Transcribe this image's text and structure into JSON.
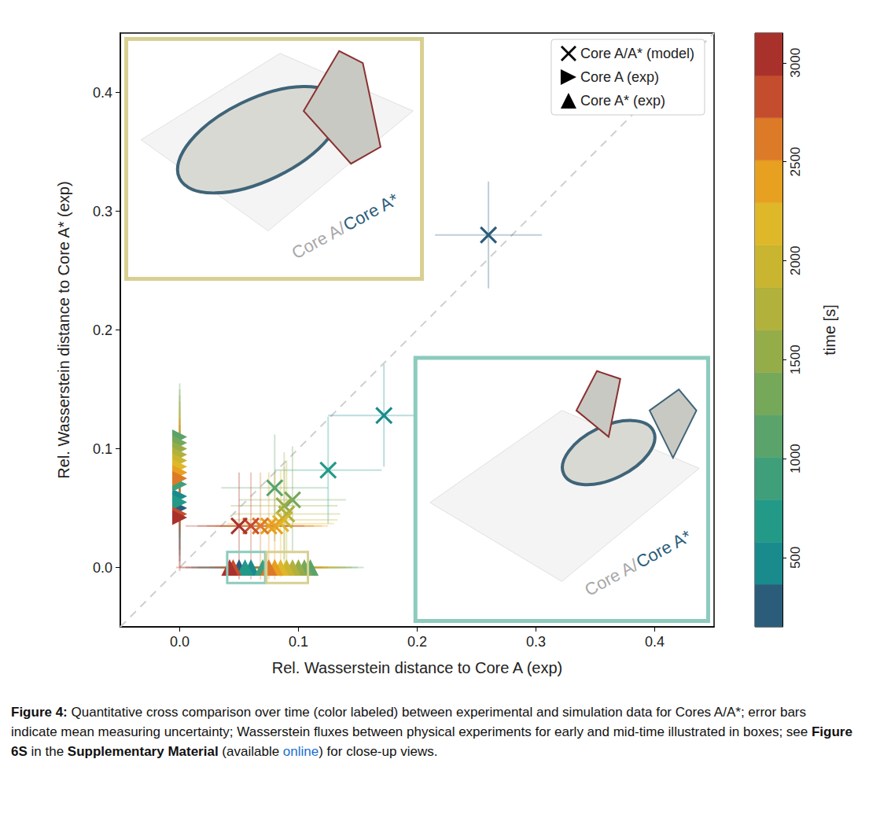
{
  "chart_data": {
    "type": "scatter",
    "xlabel": "Rel. Wasserstein distance to Core A (exp)",
    "ylabel": "Rel. Wasserstein distance to Core A* (exp)",
    "xlim": [
      -0.05,
      0.45
    ],
    "ylim": [
      -0.05,
      0.45
    ],
    "xticks": [
      {
        "value": 0,
        "label": "0.0"
      },
      {
        "value": 0.1,
        "label": "0.1"
      },
      {
        "value": 0.2,
        "label": "0.2"
      },
      {
        "value": 0.3,
        "label": "0.3"
      },
      {
        "value": 0.4,
        "label": "0.4"
      }
    ],
    "yticks": [
      {
        "value": 0,
        "label": "0.0"
      },
      {
        "value": 0.1,
        "label": "0.1"
      },
      {
        "value": 0.2,
        "label": "0.2"
      },
      {
        "value": 0.3,
        "label": "0.3"
      },
      {
        "value": 0.4,
        "label": "0.4"
      }
    ],
    "grid": false,
    "legend": "upper right",
    "series": [
      {
        "name": "Core A/A* (model)",
        "color": "#000000",
        "marker": "x",
        "x": [
          0.26,
          0.172,
          0.125,
          0.08,
          0.095,
          0.088,
          0.09,
          0.088,
          0.085,
          0.08,
          0.075,
          0.068,
          0.06,
          0.05
        ],
        "y": [
          0.28,
          0.128,
          0.082,
          0.067,
          0.057,
          0.052,
          0.045,
          0.04,
          0.037,
          0.035,
          0.035,
          0.035,
          0.035,
          0.035
        ],
        "time": [
          300,
          500,
          700,
          1100,
          1300,
          1500,
          1700,
          1900,
          2100,
          2300,
          2500,
          2700,
          2900,
          3100
        ],
        "xerr": [
          0.045,
          0.047,
          0.045,
          0.045,
          0.045,
          0.045,
          0.045,
          0.045,
          0.045,
          0.045,
          0.045,
          0.045,
          0.045,
          0.045
        ],
        "yerr": [
          0.045,
          0.043,
          0.045,
          0.045,
          0.045,
          0.045,
          0.045,
          0.045,
          0.045,
          0.045,
          0.045,
          0.045,
          0.045,
          0.045
        ]
      },
      {
        "name": "Core A (exp)",
        "color": "#000000",
        "marker": "triangle-right",
        "x": [
          0,
          0,
          0,
          0,
          0,
          0,
          0,
          0,
          0,
          0,
          0,
          0,
          0,
          0,
          0
        ],
        "y": [
          0.05,
          0.06,
          0.055,
          0.07,
          0.11,
          0.105,
          0.1,
          0.095,
          0.09,
          0.085,
          0.08,
          0.08,
          0.075,
          0.045,
          0.042
        ],
        "time": [
          300,
          500,
          700,
          900,
          1100,
          1300,
          1500,
          1700,
          1900,
          2100,
          2300,
          2500,
          2700,
          2900,
          3100
        ],
        "xerr": [
          null,
          null,
          null,
          null,
          null,
          null,
          null,
          null,
          null,
          null,
          null,
          null,
          null,
          null,
          null
        ],
        "yerr": [
          0.045,
          0.045,
          0.045,
          0.045,
          0.045,
          0.045,
          0.045,
          0.045,
          0.045,
          0.045,
          0.045,
          0.045,
          0.045,
          0.045,
          0.045
        ]
      },
      {
        "name": "Core A* (exp)",
        "color": "#000000",
        "marker": "triangle",
        "x": [
          0.05,
          0.06,
          0.055,
          0.07,
          0.11,
          0.105,
          0.1,
          0.095,
          0.09,
          0.085,
          0.08,
          0.08,
          0.075,
          0.045,
          0.042
        ],
        "y": [
          0,
          0,
          0,
          0,
          0,
          0,
          0,
          0,
          0,
          0,
          0,
          0,
          0,
          0,
          0
        ],
        "time": [
          300,
          500,
          700,
          900,
          1100,
          1300,
          1500,
          1700,
          1900,
          2100,
          2300,
          2500,
          2700,
          2900,
          3100
        ],
        "xerr": [
          0.045,
          0.045,
          0.045,
          0.045,
          0.045,
          0.045,
          0.045,
          0.045,
          0.045,
          0.045,
          0.045,
          0.045,
          0.045,
          0.045,
          0.045
        ],
        "yerr": [
          null,
          null,
          null,
          null,
          null,
          null,
          null,
          null,
          null,
          null,
          null,
          null,
          null,
          null,
          null
        ]
      }
    ],
    "colorbar": {
      "label": "time [s]",
      "lim": [
        150,
        3150
      ],
      "ticks": [
        500,
        1000,
        1500,
        2000,
        2500,
        3000
      ],
      "colors": [
        "#2b5d7b",
        "#1a8b8d",
        "#239a88",
        "#3f9f7a",
        "#5aa36a",
        "#76a85a",
        "#95ad48",
        "#b1b13c",
        "#c9b530",
        "#dfb82a",
        "#e8a020",
        "#dc7a28",
        "#c44d2e",
        "#a8322b"
      ]
    }
  },
  "insets": [
    {
      "text": [
        "Core A/",
        "Core A*"
      ]
    },
    {
      "text": [
        "Core A/",
        "Core A*"
      ]
    }
  ],
  "caption": [
    {
      "text": "Figure 4:",
      "style": "bold"
    },
    {
      "text": " Quantitative cross comparison over time (color labeled) between experimental and simulation data for Cores A/A*; error bars indicate mean measuring uncertainty; Wasserstein fluxes between physical experiments for early and mid-time illustrated in boxes; see ",
      "style": "plain"
    },
    {
      "text": "Figure 6S",
      "style": "bold"
    },
    {
      "text": " in the ",
      "style": "plain"
    },
    {
      "text": "Supplementary Material",
      "style": "bold"
    },
    {
      "text": " (available ",
      "style": "plain"
    },
    {
      "text": "online",
      "style": "link"
    },
    {
      "text": ") for close-up views.",
      "style": "plain"
    }
  ]
}
